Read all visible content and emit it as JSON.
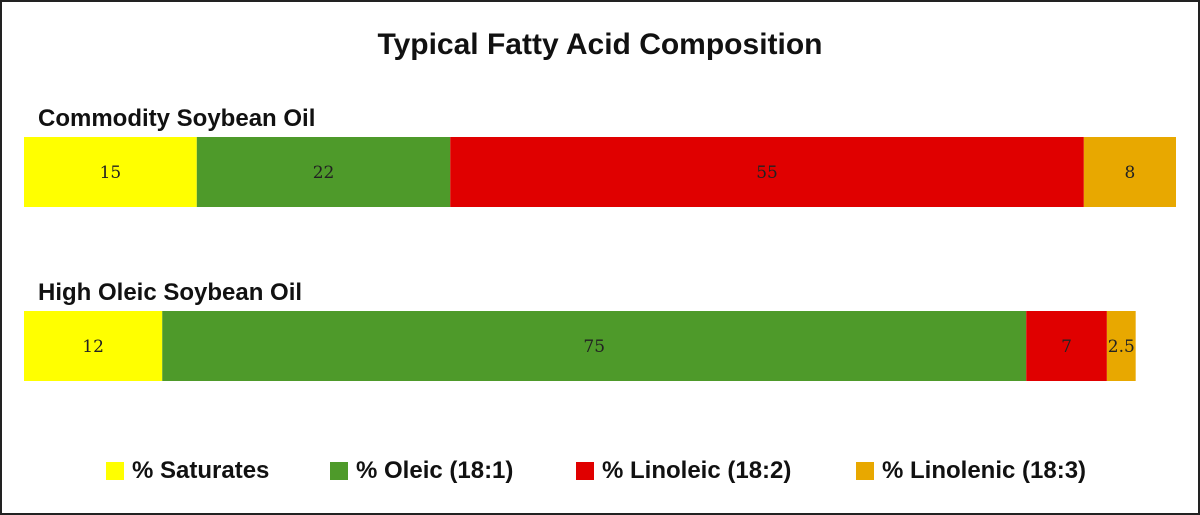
{
  "chart_data": {
    "type": "bar",
    "orientation": "horizontal",
    "stacked": true,
    "title": "Typical Fatty Acid Composition",
    "categories": [
      "Commodity Soybean Oil",
      "High Oleic Soybean Oil"
    ],
    "series": [
      {
        "name": "% Saturates",
        "color": "#ffff00",
        "values": [
          15,
          12
        ]
      },
      {
        "name": "% Oleic (18:1)",
        "color": "#4e9a2a",
        "values": [
          22,
          75
        ]
      },
      {
        "name": "% Linoleic (18:2)",
        "color": "#e00000",
        "values": [
          55,
          7
        ]
      },
      {
        "name": "% Linolenic (18:3)",
        "color": "#e8a800",
        "values": [
          8,
          2.5
        ]
      }
    ],
    "data_labels": [
      [
        "15",
        "22",
        "55",
        "8"
      ],
      [
        "12",
        "75",
        "7",
        "2.5"
      ]
    ],
    "xlim": [
      0,
      100
    ],
    "grid": false,
    "legend_position": "bottom"
  }
}
